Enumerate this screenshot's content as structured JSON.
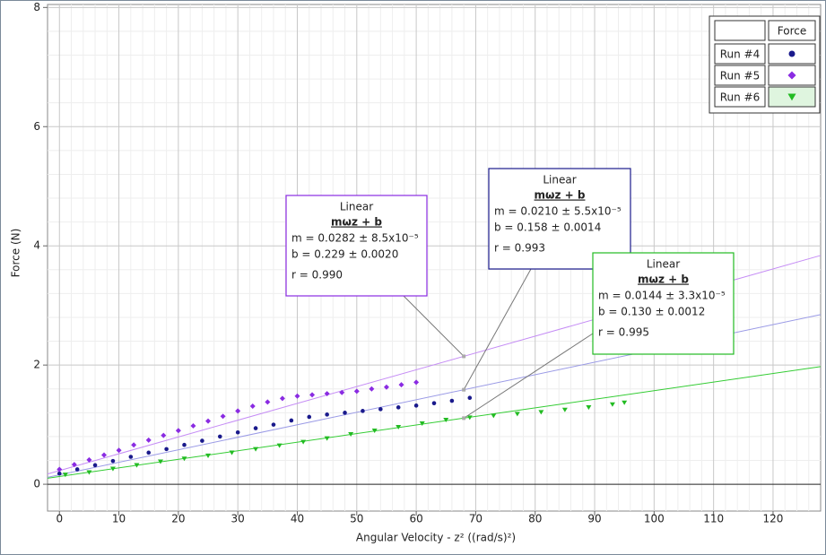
{
  "chart_data": {
    "type": "scatter",
    "x_label": "Angular Velocity - z² ((rad/s)²)",
    "y_label": "Force (N)",
    "xlim": [
      -2,
      128
    ],
    "ylim": [
      -0.45,
      8.05
    ],
    "xticks": [
      0,
      10,
      20,
      30,
      40,
      50,
      60,
      70,
      80,
      90,
      100,
      110,
      120
    ],
    "yticks": [
      0,
      2,
      4,
      6,
      8
    ],
    "grid": true,
    "legend_title": "Force",
    "legend": "upper right",
    "series": [
      {
        "name": "Run #4",
        "color": "#1a1a8c",
        "marker": "circle",
        "x": [
          0,
          3,
          6,
          9,
          12,
          15,
          18,
          21,
          24,
          27,
          30,
          33,
          36,
          39,
          42,
          45,
          48,
          51,
          54,
          57,
          60,
          63,
          66,
          69
        ],
        "values": [
          0.18,
          0.25,
          0.32,
          0.39,
          0.46,
          0.53,
          0.59,
          0.66,
          0.73,
          0.8,
          0.87,
          0.94,
          1.0,
          1.07,
          1.13,
          1.17,
          1.2,
          1.23,
          1.26,
          1.29,
          1.32,
          1.36,
          1.4,
          1.45
        ],
        "fit": {
          "title": "Linear",
          "equation": "mωz + b",
          "m": 0.021,
          "b": 0.158,
          "line_color": "#9a9ae6",
          "m_label": "m = 0.0210 ± 5.5x10⁻⁵",
          "b_label": "b  = 0.158   ± 0.0014",
          "r_label": "r = 0.993"
        }
      },
      {
        "name": "Run #5",
        "color": "#8a2be2",
        "marker": "diamond",
        "x": [
          0,
          2.5,
          5,
          7.5,
          10,
          12.5,
          15,
          17.5,
          20,
          22.5,
          25,
          27.5,
          30,
          32.5,
          35,
          37.5,
          40,
          42.5,
          45,
          47.5,
          50,
          52.5,
          55,
          57.5,
          60
        ],
        "values": [
          0.25,
          0.33,
          0.41,
          0.49,
          0.57,
          0.66,
          0.74,
          0.82,
          0.9,
          0.98,
          1.06,
          1.14,
          1.23,
          1.31,
          1.38,
          1.44,
          1.48,
          1.5,
          1.52,
          1.54,
          1.56,
          1.6,
          1.63,
          1.67,
          1.71
        ],
        "fit": {
          "title": "Linear",
          "equation": "mωz + b",
          "m": 0.0282,
          "b": 0.229,
          "line_color": "#c58cf5",
          "m_label": "m = 0.0282 ± 8.5x10⁻⁵",
          "b_label": "b  = 0.229   ± 0.0020",
          "r_label": "r = 0.990"
        }
      },
      {
        "name": "Run #6",
        "color": "#22bb22",
        "marker": "triangle",
        "x": [
          1,
          5,
          9,
          13,
          17,
          21,
          25,
          29,
          33,
          37,
          41,
          45,
          49,
          53,
          57,
          61,
          65,
          69,
          73,
          77,
          81,
          85,
          89,
          93,
          95
        ],
        "values": [
          0.16,
          0.2,
          0.26,
          0.32,
          0.38,
          0.43,
          0.48,
          0.53,
          0.59,
          0.65,
          0.71,
          0.77,
          0.84,
          0.9,
          0.96,
          1.02,
          1.08,
          1.12,
          1.15,
          1.18,
          1.21,
          1.25,
          1.29,
          1.34,
          1.37
        ],
        "fit": {
          "title": "Linear",
          "equation": "mωz + b",
          "m": 0.0144,
          "b": 0.13,
          "line_color": "#33cc33",
          "m_label": "m = 0.0144 ± 3.3x10⁻⁵",
          "b_label": "b  = 0.130   ± 0.0012",
          "r_label": "r = 0.995"
        }
      }
    ]
  }
}
